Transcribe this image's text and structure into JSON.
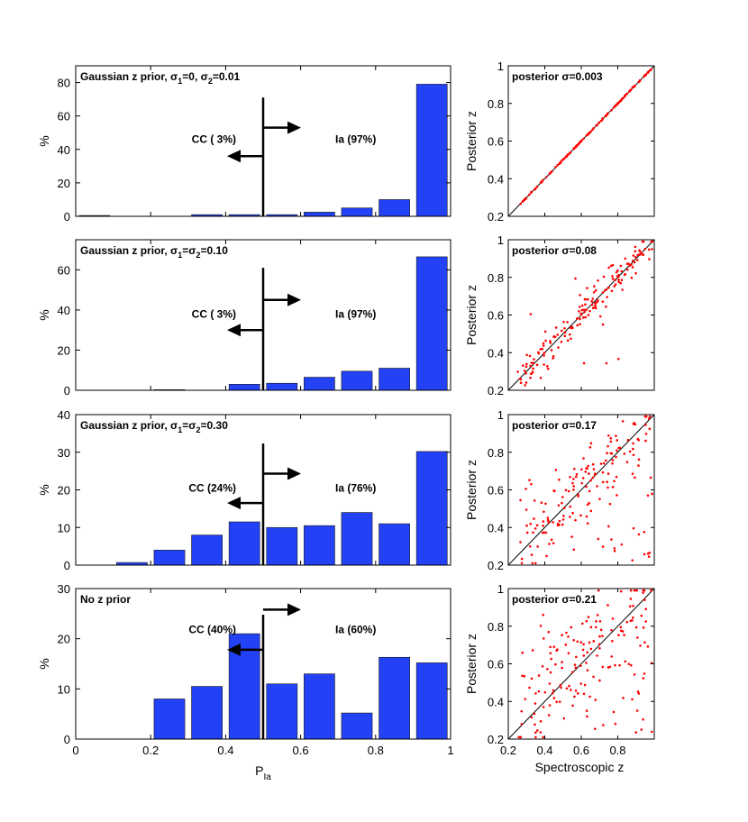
{
  "labels": {
    "hist_ylabel": "%",
    "hist_xlabel_main": "P",
    "hist_xlabel_sub": "Ia",
    "scatter_ylabel": "Posterior z",
    "scatter_xlabel": "Spectroscopic z"
  },
  "colors": {
    "bar": "#2341f5",
    "points": "#ff0000"
  },
  "chart_data": [
    {
      "type": "bar",
      "title": "Gaussian z prior, σ1=0, σ2=0.01",
      "title_parts": [
        "Gaussian z prior, σ",
        "1",
        "=0, σ",
        "2",
        "=0.01"
      ],
      "bin_edges": [
        0,
        0.1,
        0.2,
        0.3,
        0.4,
        0.5,
        0.6,
        0.7,
        0.8,
        0.9,
        1.0
      ],
      "values": [
        0.5,
        0,
        0,
        1,
        1,
        1,
        2.5,
        5,
        10,
        79
      ],
      "ylim": [
        0,
        90
      ],
      "yticks": [
        0,
        20,
        40,
        60,
        80
      ],
      "xlim": [
        0,
        1
      ],
      "ylabel": "%",
      "cut": 0.5,
      "cc_label": "CC ( 3%)",
      "ia_label": "Ia (97%)",
      "cut_top": 71,
      "left_arrow_y": 36,
      "right_arrow_y": 53,
      "cc_label_y": 46,
      "ia_label_y": 46
    },
    {
      "type": "bar",
      "title": "Gaussian z prior, σ1=σ2=0.10",
      "title_parts": [
        "Gaussian z prior, σ",
        "1",
        "=σ",
        "2",
        "=0.10"
      ],
      "bin_edges": [
        0,
        0.1,
        0.2,
        0.3,
        0.4,
        0.5,
        0.6,
        0.7,
        0.8,
        0.9,
        1.0
      ],
      "values": [
        0,
        0,
        0.3,
        0,
        3,
        3.5,
        6.5,
        9.5,
        11,
        66.5
      ],
      "ylim": [
        0,
        75
      ],
      "yticks": [
        0,
        20,
        40,
        60
      ],
      "xlim": [
        0,
        1
      ],
      "ylabel": "%",
      "cut": 0.5,
      "cc_label": "CC ( 3%)",
      "ia_label": "Ia (97%)",
      "cut_top": 61,
      "left_arrow_y": 30,
      "right_arrow_y": 45,
      "cc_label_y": 38,
      "ia_label_y": 38
    },
    {
      "type": "bar",
      "title": "Gaussian z prior, σ1=σ2=0.30",
      "title_parts": [
        "Gaussian z prior, σ",
        "1",
        "=σ",
        "2",
        "=0.30"
      ],
      "bin_edges": [
        0,
        0.1,
        0.2,
        0.3,
        0.4,
        0.5,
        0.6,
        0.7,
        0.8,
        0.9,
        1.0
      ],
      "values": [
        0,
        0.7,
        4,
        8,
        11.5,
        10,
        10.5,
        14,
        11,
        30.2
      ],
      "ylim": [
        0,
        40
      ],
      "yticks": [
        0,
        10,
        20,
        30,
        40
      ],
      "xlim": [
        0,
        1
      ],
      "ylabel": "%",
      "cut": 0.5,
      "cc_label": "CC (24%)",
      "ia_label": "Ia (76%)",
      "cut_top": 32.3,
      "left_arrow_y": 16.5,
      "right_arrow_y": 24.3,
      "cc_label_y": 20.5,
      "ia_label_y": 20.5
    },
    {
      "type": "bar",
      "title": "No z prior",
      "title_parts": [
        "No z prior",
        "",
        "",
        "",
        ""
      ],
      "bin_edges": [
        0,
        0.1,
        0.2,
        0.3,
        0.4,
        0.5,
        0.6,
        0.7,
        0.8,
        0.9,
        1.0
      ],
      "values": [
        0,
        0,
        8,
        10.5,
        21,
        11,
        13,
        5.2,
        16.3,
        15.2
      ],
      "ylim": [
        0,
        30
      ],
      "yticks": [
        0,
        10,
        20,
        30
      ],
      "xlim": [
        0,
        1
      ],
      "xticks": [
        0,
        0.2,
        0.4,
        0.6,
        0.8,
        1
      ],
      "ylabel": "%",
      "cut": 0.5,
      "cc_label": "CC (40%)",
      "ia_label": "Ia (60%)",
      "cut_top": 24.8,
      "left_arrow_y": 17.8,
      "right_arrow_y": 25.8,
      "cc_label_y": 21.8,
      "ia_label_y": 21.8
    },
    {
      "type": "scatter",
      "title": "posterior σ=0.003",
      "title_parts": [
        "posterior σ",
        "=0.003"
      ],
      "sigma": 0.003,
      "seed": 11,
      "n_points": 120,
      "outlier_frac": 0,
      "xlim": [
        0.2,
        1
      ],
      "ylim": [
        0.2,
        1
      ],
      "xticks": [
        0.2,
        0.4,
        0.6,
        0.8
      ],
      "yticks": [
        0.2,
        0.4,
        0.6,
        0.8,
        1
      ],
      "ylabel": "Posterior z"
    },
    {
      "type": "scatter",
      "title": "posterior σ=0.08",
      "title_parts": [
        "posterior σ",
        "=0.08"
      ],
      "sigma": 0.08,
      "seed": 23,
      "n_points": 170,
      "outlier_frac": 0.04,
      "xlim": [
        0.2,
        1
      ],
      "ylim": [
        0.2,
        1
      ],
      "xticks": [
        0.2,
        0.4,
        0.6,
        0.8
      ],
      "yticks": [
        0.2,
        0.4,
        0.6,
        0.8,
        1
      ],
      "ylabel": "Posterior z"
    },
    {
      "type": "scatter",
      "title": "posterior σ=0.17",
      "title_parts": [
        "posterior σ",
        "=0.17"
      ],
      "sigma": 0.17,
      "seed": 37,
      "n_points": 170,
      "outlier_frac": 0.3,
      "xlim": [
        0.2,
        1
      ],
      "ylim": [
        0.2,
        1
      ],
      "xticks": [
        0.2,
        0.4,
        0.6,
        0.8
      ],
      "yticks": [
        0.2,
        0.4,
        0.6,
        0.8,
        1
      ],
      "ylabel": "Posterior z"
    },
    {
      "type": "scatter",
      "title": "posterior σ=0.21",
      "title_parts": [
        "posterior σ",
        "=0.21"
      ],
      "sigma": 0.21,
      "seed": 51,
      "n_points": 170,
      "outlier_frac": 0.45,
      "xlim": [
        0.2,
        1
      ],
      "ylim": [
        0.2,
        1
      ],
      "xticks": [
        0.2,
        0.4,
        0.6,
        0.8
      ],
      "yticks": [
        0.2,
        0.4,
        0.6,
        0.8,
        1
      ],
      "ylabel": "Posterior z",
      "xlabel": "Spectroscopic z"
    }
  ]
}
